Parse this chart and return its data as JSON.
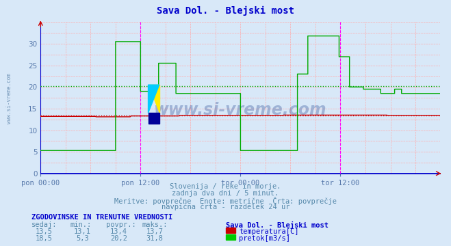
{
  "title": "Sava Dol. - Blejski most",
  "title_color": "#0000cc",
  "bg_color": "#d8e8f8",
  "plot_bg_color": "#d8e8f8",
  "grid_pink": "#ffaaaa",
  "axis_color": "#0000cc",
  "xlabel_color": "#5577aa",
  "ylabel_range": [
    0,
    35
  ],
  "yticks": [
    0,
    5,
    10,
    15,
    20,
    25,
    30
  ],
  "xlim_max": 575,
  "xtick_positions": [
    0,
    144,
    288,
    432
  ],
  "xtick_labels": [
    "pon 00:00",
    "pon 12:00",
    "tor 00:00",
    "tor 12:00"
  ],
  "watermark": "www.si-vreme.com",
  "temp_color": "#cc0000",
  "flow_color": "#00aa00",
  "temp_avg": 13.4,
  "flow_avg": 20.2,
  "temp_sedaj": 13.5,
  "temp_min": 13.1,
  "temp_maks": 13.7,
  "flow_sedaj": 18.5,
  "flow_min": 5.3,
  "flow_maks": 31.8,
  "vline_positions": [
    144,
    432
  ],
  "vline_color": "#ff00ff",
  "bottom_text1": "Slovenija / reke in morje.",
  "bottom_text2": "zadnja dva dni / 5 minut.",
  "bottom_text3": "Meritve: povprečne  Enote: metrične  Črta: povprečje",
  "bottom_text4": "navpična črta - razdelek 24 ur",
  "table_title": "ZGODOVINSKE IN TRENUTNE VREDNOSTI",
  "col_headers": [
    "sedaj:",
    "min.:",
    "povpr.:",
    "maks.:"
  ],
  "row1_label": "temperatura[C]",
  "row2_label": "pretok[m3/s]",
  "text_color": "#5588aa",
  "label_color": "#0000cc"
}
